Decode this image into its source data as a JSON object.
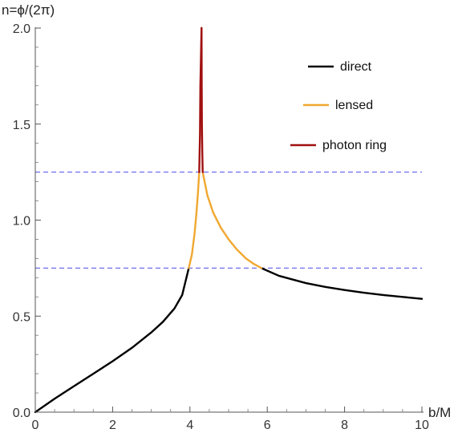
{
  "chart_data": {
    "type": "line",
    "xlabel": "b/M",
    "ylabel": "n=ϕ/(2π)",
    "xlim": [
      0,
      10
    ],
    "ylim": [
      0,
      2
    ],
    "x_ticks": [
      "0",
      "2",
      "4",
      "6",
      "8",
      "10"
    ],
    "y_ticks": [
      "0.0",
      "0.5",
      "1.0",
      "1.5",
      "2.0"
    ],
    "grid": false,
    "legend_position": "top-right",
    "reference_lines": [
      {
        "y": 0.75,
        "style": "dashed",
        "color": "#6f6ff2"
      },
      {
        "y": 1.25,
        "style": "dashed",
        "color": "#6f6ff2"
      }
    ],
    "series": [
      {
        "name": "direct",
        "color": "#000000",
        "segments": [
          {
            "x": [
              0.0,
              0.5,
              1.0,
              1.5,
              2.0,
              2.5,
              3.0,
              3.3,
              3.6,
              3.8,
              3.97
            ],
            "y": [
              0.0,
              0.07,
              0.135,
              0.2,
              0.265,
              0.335,
              0.415,
              0.47,
              0.54,
              0.61,
              0.75
            ]
          },
          {
            "x": [
              5.85,
              6.3,
              7.0,
              7.5,
              8.0,
              8.5,
              9.0,
              9.5,
              10.0
            ],
            "y": [
              0.75,
              0.71,
              0.672,
              0.652,
              0.636,
              0.622,
              0.61,
              0.6,
              0.59
            ]
          }
        ]
      },
      {
        "name": "lensed",
        "color": "#f0a830",
        "segments": [
          {
            "x": [
              3.97,
              4.05,
              4.12,
              4.17,
              4.21,
              4.24
            ],
            "y": [
              0.75,
              0.82,
              0.93,
              1.04,
              1.15,
              1.25
            ]
          },
          {
            "x": [
              4.33,
              4.45,
              4.6,
              4.8,
              5.0,
              5.2,
              5.45,
              5.65,
              5.85
            ],
            "y": [
              1.25,
              1.13,
              1.04,
              0.96,
              0.9,
              0.85,
              0.8,
              0.772,
              0.75
            ]
          }
        ]
      },
      {
        "name": "photon ring",
        "color": "#a01010",
        "segments": [
          {
            "x": [
              4.24,
              4.26,
              4.27,
              4.29,
              4.3
            ],
            "y": [
              1.25,
              1.45,
              1.7,
              1.9,
              2.0
            ]
          },
          {
            "x": [
              4.3,
              4.305,
              4.31,
              4.32,
              4.33
            ],
            "y": [
              2.0,
              1.7,
              1.5,
              1.35,
              1.25
            ]
          }
        ]
      }
    ]
  }
}
